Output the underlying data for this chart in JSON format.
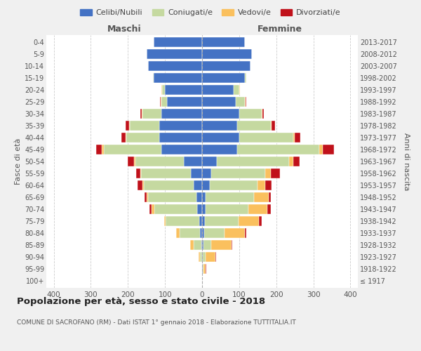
{
  "age_groups": [
    "100+",
    "95-99",
    "90-94",
    "85-89",
    "80-84",
    "75-79",
    "70-74",
    "65-69",
    "60-64",
    "55-59",
    "50-54",
    "45-49",
    "40-44",
    "35-39",
    "30-34",
    "25-29",
    "20-24",
    "15-19",
    "10-14",
    "5-9",
    "0-4"
  ],
  "birth_years": [
    "≤ 1917",
    "1918-1922",
    "1923-1927",
    "1928-1932",
    "1933-1937",
    "1938-1942",
    "1943-1947",
    "1948-1952",
    "1953-1957",
    "1958-1962",
    "1963-1967",
    "1968-1972",
    "1973-1977",
    "1978-1982",
    "1983-1987",
    "1988-1992",
    "1993-1997",
    "1998-2002",
    "2003-2007",
    "2008-2012",
    "2013-2017"
  ],
  "male": {
    "celibi": [
      0,
      0,
      0,
      2,
      5,
      8,
      14,
      15,
      22,
      30,
      50,
      110,
      115,
      115,
      110,
      95,
      100,
      130,
      145,
      150,
      130
    ],
    "coniugati": [
      0,
      0,
      5,
      20,
      55,
      90,
      115,
      130,
      135,
      135,
      130,
      155,
      90,
      80,
      50,
      15,
      8,
      3,
      0,
      0,
      0
    ],
    "vedovi": [
      0,
      0,
      5,
      10,
      10,
      5,
      8,
      5,
      3,
      2,
      3,
      5,
      2,
      2,
      2,
      2,
      2,
      0,
      0,
      0,
      0
    ],
    "divorziati": [
      0,
      0,
      0,
      0,
      0,
      0,
      5,
      5,
      15,
      10,
      18,
      15,
      10,
      10,
      5,
      2,
      0,
      0,
      0,
      0,
      0
    ]
  },
  "female": {
    "nubili": [
      0,
      2,
      2,
      3,
      5,
      8,
      10,
      10,
      20,
      25,
      40,
      95,
      100,
      95,
      100,
      90,
      85,
      115,
      130,
      135,
      115
    ],
    "coniugate": [
      0,
      2,
      8,
      22,
      55,
      90,
      115,
      130,
      130,
      145,
      195,
      220,
      145,
      90,
      60,
      25,
      15,
      5,
      0,
      0,
      0
    ],
    "vedove": [
      0,
      5,
      25,
      55,
      55,
      55,
      50,
      40,
      20,
      15,
      10,
      10,
      5,
      3,
      2,
      2,
      2,
      0,
      0,
      0,
      0
    ],
    "divorziate": [
      0,
      2,
      2,
      2,
      5,
      8,
      10,
      5,
      18,
      25,
      18,
      30,
      15,
      8,
      5,
      2,
      0,
      0,
      0,
      0,
      0
    ]
  },
  "colors": {
    "celibi": "#4472C4",
    "coniugati": "#C5D9A0",
    "vedovi": "#FAC05E",
    "divorziati": "#C0111A"
  },
  "xlim": 420,
  "title": "Popolazione per età, sesso e stato civile - 2018",
  "subtitle": "COMUNE DI SACROFANO (RM) - Dati ISTAT 1° gennaio 2018 - Elaborazione TUTTITALIA.IT",
  "ylabel_left": "Fasce di età",
  "ylabel_right": "Anni di nascita",
  "xlabel_left": "Maschi",
  "xlabel_right": "Femmine",
  "bg_color": "#f0f0f0",
  "plot_bg_color": "#ffffff"
}
